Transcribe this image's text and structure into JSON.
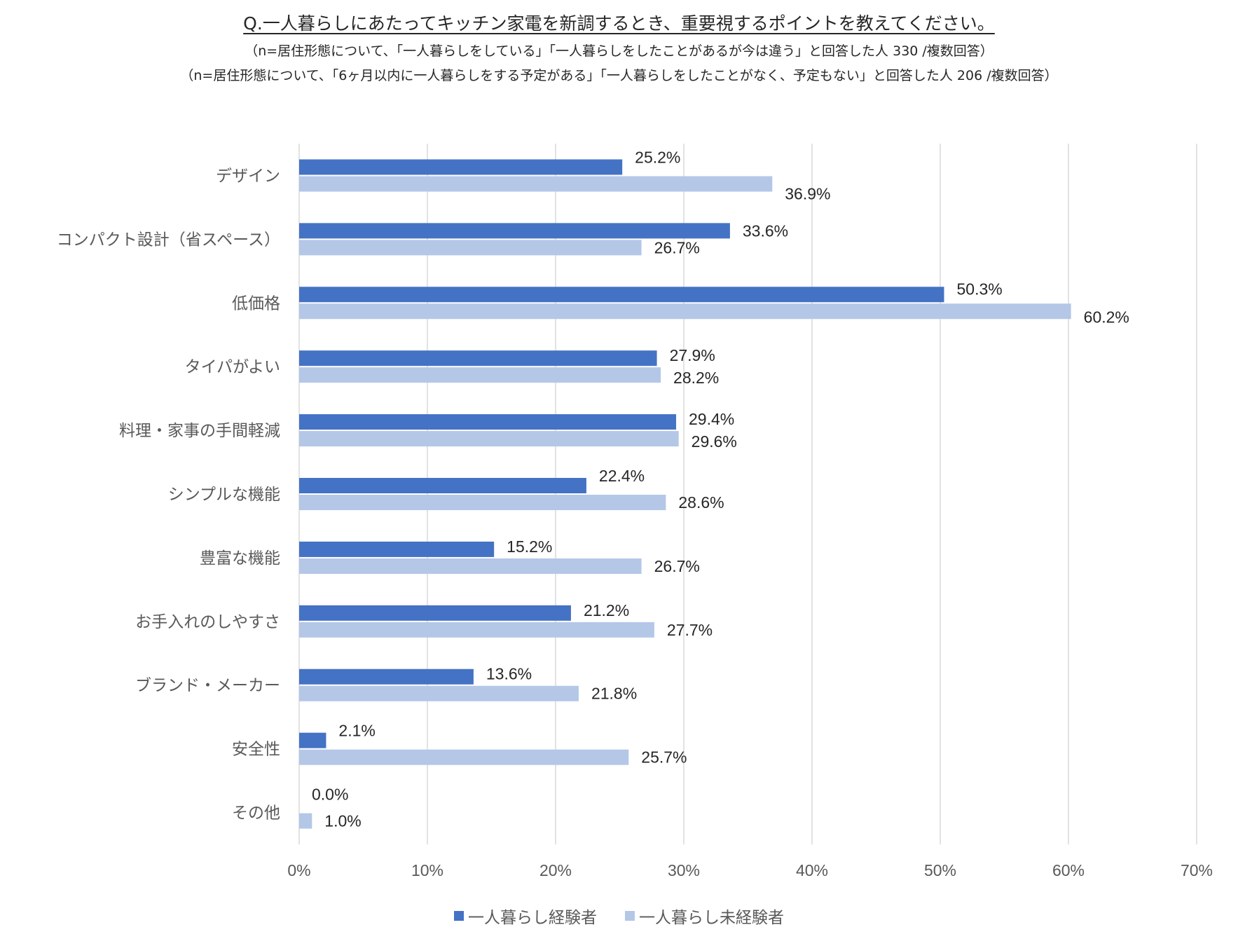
{
  "title": "Q.一人暮らしにあたってキッチン家電を新調するとき、重要視するポイントを教えてください。",
  "subtitle1": "（n=居住形態について、「一人暮らしをしている」「一人暮らしをしたことがあるが今は違う」と回答した人 330 /複数回答）",
  "subtitle2": "（n=居住形態について、「6ヶ月以内に一人暮らしをする予定がある」「一人暮らしをしたことがなく、予定もない」と回答した人 206 /複数回答）",
  "colors": {
    "series1": "#4472C4",
    "series2": "#B4C7E7",
    "grid": "#D9D9D9"
  },
  "chart_data": {
    "type": "bar",
    "orientation": "horizontal",
    "categories": [
      "デザイン",
      "コンパクト設計（省スペース）",
      "低価格",
      "タイパがよい",
      "料理・家事の手間軽減",
      "シンプルな機能",
      "豊富な機能",
      "お手入れのしやすさ",
      "ブランド・メーカー",
      "安全性",
      "その他"
    ],
    "series": [
      {
        "name": "一人暮らし経験者",
        "values": [
          25.2,
          33.6,
          50.3,
          27.9,
          29.4,
          22.4,
          15.2,
          21.2,
          13.6,
          2.1,
          0.0
        ]
      },
      {
        "name": "一人暮らし未経験者",
        "values": [
          36.9,
          26.7,
          60.2,
          28.2,
          29.6,
          28.6,
          26.7,
          27.7,
          21.8,
          25.7,
          1.0
        ]
      }
    ],
    "xlim": [
      0,
      70
    ],
    "xticks": [
      0,
      10,
      20,
      30,
      40,
      50,
      60,
      70
    ],
    "tick_suffix": "%",
    "value_suffix": "%",
    "grid": true,
    "legend_position": "bottom"
  }
}
